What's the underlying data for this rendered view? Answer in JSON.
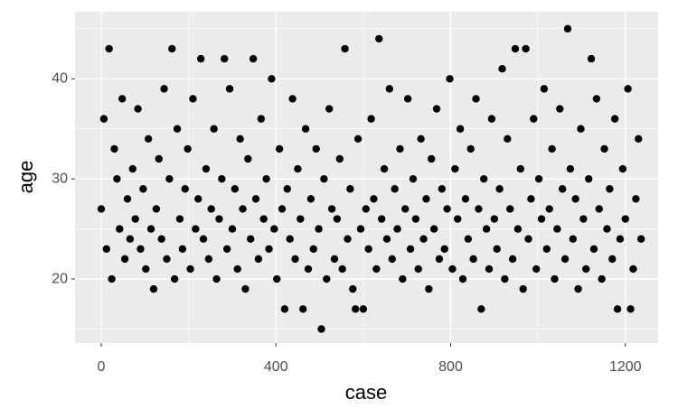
{
  "chart_data": {
    "type": "scatter",
    "x_label": "case",
    "y_label": "age",
    "xlim": [
      -60,
      1275
    ],
    "ylim": [
      13.6,
      46.7
    ],
    "xticks": [
      0,
      400,
      800,
      1200
    ],
    "yticks": [
      20,
      30,
      40
    ],
    "xminor": [
      200,
      600,
      1000
    ],
    "yminor": [
      15,
      25,
      35,
      45
    ],
    "grid": true,
    "color": "#000000",
    "panel_color": "#ebebeb",
    "x": [
      0,
      6,
      12,
      18,
      24,
      30,
      36,
      42,
      48,
      54,
      60,
      66,
      72,
      78,
      84,
      90,
      96,
      102,
      108,
      114,
      120,
      126,
      132,
      138,
      144,
      150,
      156,
      162,
      168,
      174,
      180,
      186,
      192,
      198,
      204,
      210,
      216,
      222,
      228,
      234,
      240,
      246,
      252,
      258,
      264,
      270,
      276,
      282,
      288,
      294,
      300,
      306,
      312,
      318,
      324,
      330,
      336,
      342,
      348,
      354,
      360,
      366,
      372,
      378,
      384,
      390,
      396,
      402,
      408,
      414,
      420,
      426,
      432,
      438,
      444,
      450,
      456,
      462,
      468,
      474,
      480,
      486,
      492,
      498,
      504,
      510,
      516,
      522,
      528,
      534,
      540,
      546,
      552,
      558,
      564,
      570,
      576,
      582,
      588,
      594,
      600,
      606,
      612,
      618,
      624,
      630,
      636,
      642,
      648,
      654,
      660,
      666,
      672,
      678,
      684,
      690,
      696,
      702,
      708,
      714,
      720,
      726,
      732,
      738,
      744,
      750,
      756,
      762,
      768,
      774,
      780,
      786,
      792,
      798,
      804,
      810,
      816,
      822,
      828,
      834,
      840,
      846,
      852,
      858,
      864,
      870,
      876,
      882,
      888,
      894,
      900,
      906,
      912,
      918,
      924,
      930,
      936,
      942,
      948,
      954,
      960,
      966,
      972,
      978,
      984,
      990,
      996,
      1002,
      1008,
      1014,
      1020,
      1026,
      1032,
      1038,
      1044,
      1050,
      1056,
      1062,
      1068,
      1074,
      1080,
      1086,
      1092,
      1098,
      1104,
      1110,
      1116,
      1122,
      1128,
      1134,
      1140,
      1146,
      1152,
      1158,
      1164,
      1170,
      1176,
      1182,
      1188,
      1194,
      1200,
      1206,
      1212,
      1218,
      1224,
      1230,
      1236
    ],
    "y": [
      27,
      36,
      23,
      43,
      20,
      33,
      30,
      25,
      38,
      22,
      28,
      24,
      31,
      26,
      37,
      23,
      29,
      21,
      34,
      25,
      19,
      27,
      32,
      24,
      39,
      22,
      30,
      43,
      20,
      35,
      26,
      23,
      29,
      33,
      21,
      38,
      25,
      28,
      42,
      24,
      31,
      22,
      27,
      35,
      20,
      26,
      30,
      42,
      23,
      39,
      25,
      29,
      21,
      34,
      27,
      19,
      32,
      24,
      42,
      28,
      22,
      36,
      26,
      30,
      23,
      40,
      25,
      20,
      33,
      27,
      17,
      29,
      24,
      38,
      22,
      31,
      26,
      17,
      35,
      21,
      28,
      23,
      33,
      25,
      15,
      30,
      20,
      37,
      27,
      22,
      26,
      32,
      21,
      43,
      24,
      29,
      19,
      17,
      34,
      25,
      17,
      27,
      23,
      36,
      28,
      21,
      44,
      26,
      31,
      24,
      39,
      22,
      29,
      25,
      33,
      20,
      27,
      38,
      23,
      30,
      26,
      21,
      34,
      24,
      28,
      19,
      32,
      25,
      37,
      22,
      29,
      23,
      27,
      40,
      21,
      31,
      26,
      35,
      20,
      28,
      24,
      33,
      22,
      38,
      27,
      17,
      30,
      25,
      21,
      36,
      26,
      23,
      29,
      41,
      20,
      34,
      27,
      22,
      43,
      25,
      31,
      19,
      43,
      24,
      28,
      36,
      21,
      30,
      26,
      39,
      23,
      27,
      33,
      20,
      25,
      37,
      29,
      22,
      45,
      31,
      24,
      28,
      19,
      35,
      26,
      21,
      30,
      42,
      23,
      38,
      27,
      20,
      33,
      25,
      29,
      22,
      36,
      17,
      24,
      31,
      26,
      39,
      17,
      21,
      28,
      34,
      24
    ]
  }
}
